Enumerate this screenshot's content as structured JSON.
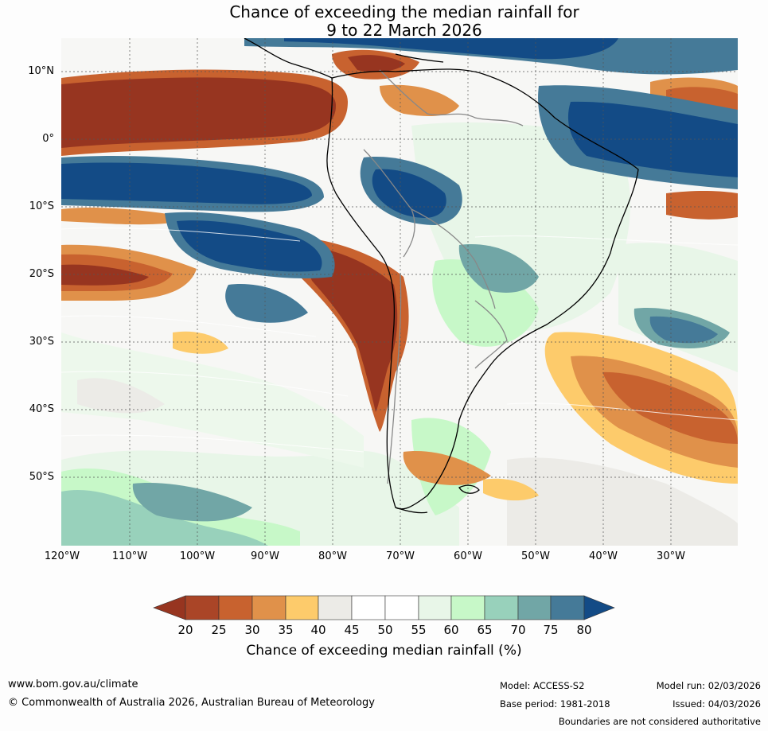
{
  "title": {
    "line1": "Chance of exceeding the median rainfall for",
    "line2": "9 to 22 March 2026"
  },
  "map": {
    "lat_labels": [
      "10°N",
      "0°",
      "10°S",
      "20°S",
      "30°S",
      "40°S",
      "50°S"
    ],
    "lon_labels": [
      "120°W",
      "110°W",
      "100°W",
      "90°W",
      "80°W",
      "70°W",
      "60°W",
      "50°W",
      "40°W",
      "30°W"
    ]
  },
  "colorbar": {
    "ticks": [
      "20",
      "25",
      "30",
      "35",
      "40",
      "45",
      "50",
      "55",
      "60",
      "65",
      "70",
      "75",
      "80"
    ],
    "colors": [
      "#973520",
      "#aa4527",
      "#c8622f",
      "#e0914a",
      "#fdcb6b",
      "#ecebe7",
      "#ffffff",
      "#ffffff",
      "#e8f6e8",
      "#c7f8c8",
      "#98d1bb",
      "#71a6a6",
      "#457a98",
      "#134b86"
    ],
    "label": "Chance of exceeding median rainfall (%)"
  },
  "footer": {
    "website": "www.bom.gov.au/climate",
    "copyright": "© Commonwealth of Australia 2026, Australian Bureau of Meteorology",
    "model": "Model: ACCESS-S2",
    "base_period": "Base period: 1981-2018",
    "model_run": "Model run: 02/03/2026",
    "issued": "Issued: 04/03/2026",
    "disclaimer": "Boundaries are not considered authoritative"
  }
}
